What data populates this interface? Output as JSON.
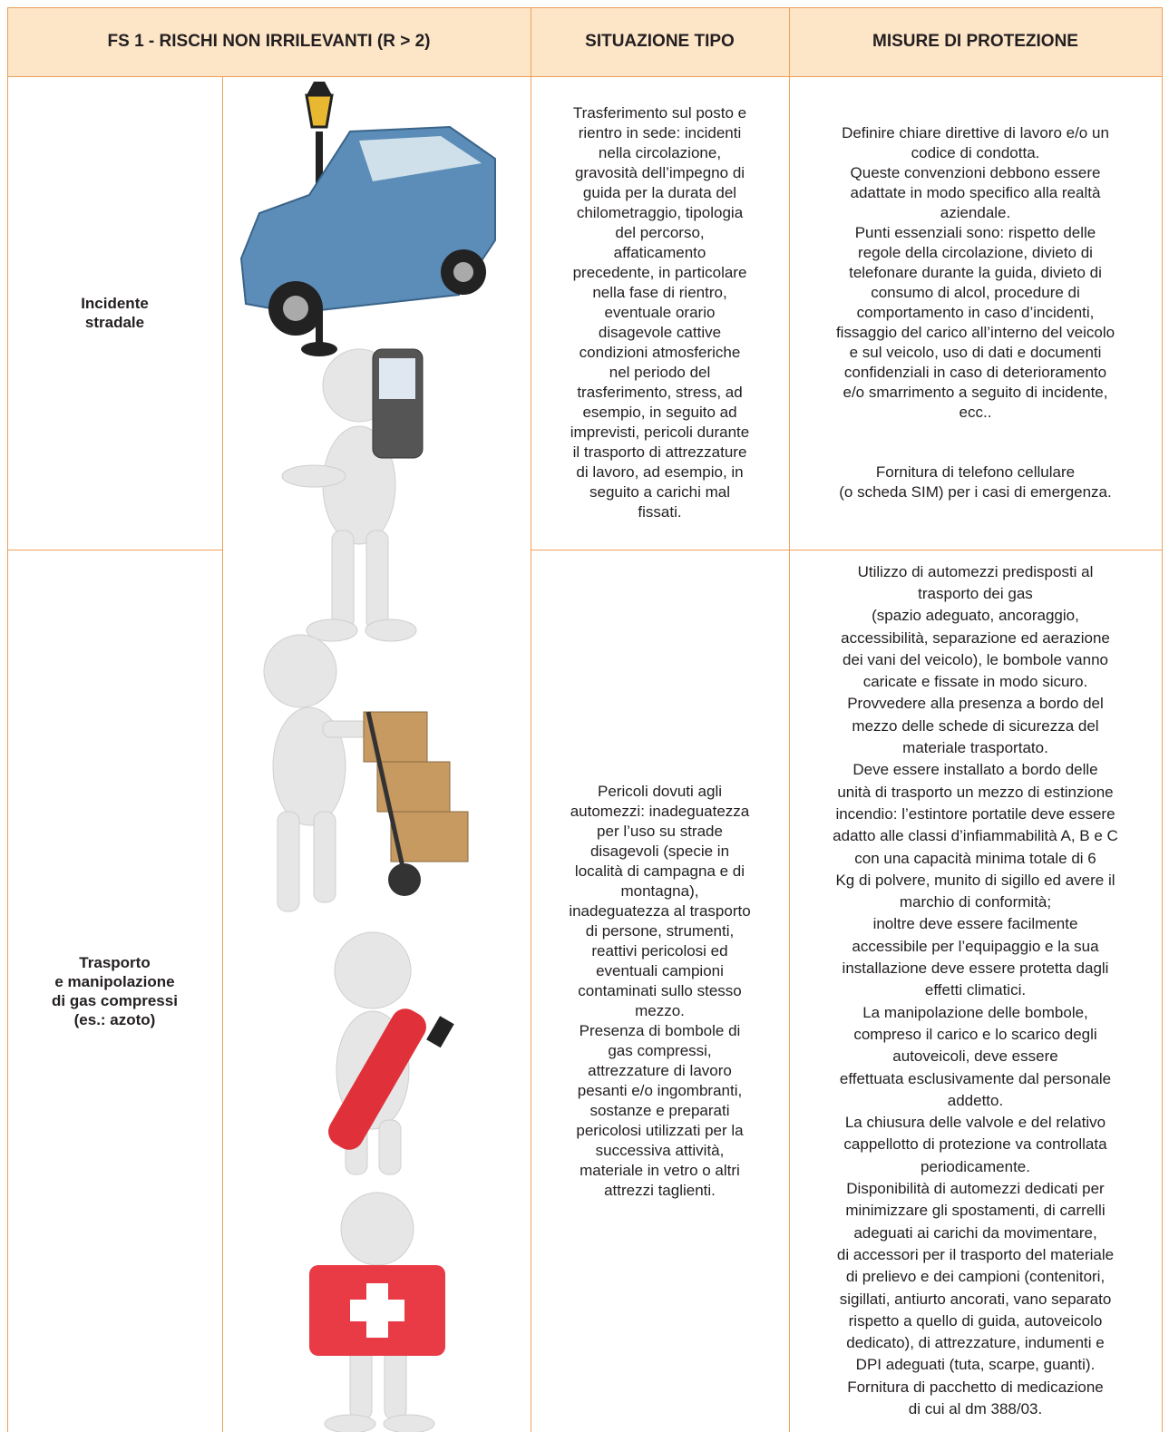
{
  "header": {
    "cells": [
      "FS 1 - RISCHI NON IRRILEVANTI (R > 2)",
      "SITUAZIONE TIPO",
      "MISURE DI PROTEZIONE"
    ]
  },
  "rows": [
    {
      "label": [
        "Incidente",
        "stradale"
      ],
      "situazione": [
        [
          "Trasferimento sul posto e",
          "rientro in sede: incidenti",
          "nella circolazione,",
          "gravosità dell’impegno di",
          "guida per la durata del",
          "chilometraggio, tipologia",
          "del percorso,",
          "affaticamento",
          "precedente, in particolare",
          "nella fase di rientro,",
          "eventuale orario",
          "disagevole cattive",
          "condizioni atmosferiche",
          "nel periodo del",
          "trasferimento, stress, ad",
          "esempio, in seguito ad",
          "imprevisti, pericoli durante",
          "il trasporto di attrezzature",
          "di lavoro, ad esempio, in",
          "seguito a carichi mal",
          "fissati."
        ]
      ],
      "misure": [
        [
          "Definire chiare direttive di lavoro e/o un",
          "codice di condotta.",
          "Queste convenzioni debbono essere",
          "adattate in modo specifico alla realtà",
          "aziendale.",
          "Punti essenziali sono: rispetto delle",
          "regole della circolazione, divieto di",
          "telefonare durante la guida, divieto di",
          "consumo di alcol, procedure di",
          "comportamento in caso d’incidenti,",
          "fissaggio del carico all’interno del veicolo",
          "e sul veicolo, uso di dati e documenti",
          "confidenziali in caso di deterioramento",
          "e/o smarrimento a seguito di incidente,",
          "ecc.."
        ],
        [
          "Fornitura di telefono cellulare",
          "(o scheda SIM) per i casi di emergenza."
        ]
      ]
    },
    {
      "label": [
        "Trasporto",
        "e manipolazione",
        "di gas compressi",
        "(es.: azoto)"
      ],
      "situazione": [
        [
          "Pericoli dovuti agli",
          "automezzi: inadeguatezza",
          "per l’uso su strade",
          "disagevoli (specie in",
          "località di campagna e di",
          "montagna),",
          "inadeguatezza al trasporto",
          "di persone, strumenti,",
          "reattivi pericolosi ed",
          "eventuali campioni",
          "contaminati sullo stesso",
          "mezzo.",
          "Presenza di bombole di",
          "gas compressi,",
          "attrezzature di lavoro",
          "pesanti e/o ingombranti,",
          "sostanze e preparati",
          "pericolosi utilizzati per la",
          "successiva attività,",
          "materiale in vetro o altri",
          "attrezzi taglienti."
        ]
      ],
      "misure": [
        [
          "Utilizzo di automezzi predisposti al",
          "trasporto dei gas",
          "(spazio adeguato, ancoraggio,",
          "accessibilità, separazione ed aerazione",
          "dei vani del veicolo), le bombole vanno",
          "caricate e fissate in modo sicuro.",
          "Provvedere alla presenza a bordo del",
          "mezzo delle schede di sicurezza del",
          "materiale trasportato.",
          "Deve essere installato a bordo delle",
          "unità di trasporto un mezzo di estinzione",
          "incendio: l’estintore portatile deve essere",
          "adatto alle classi d’infiammabilità A, B e C",
          "con una capacità minima totale di 6",
          "Kg di polvere, munito di sigillo ed avere il",
          "marchio di conformità;",
          "inoltre deve essere facilmente",
          "accessibile per l’equipaggio e la sua",
          "installazione deve essere protetta dagli",
          "effetti climatici.",
          "La manipolazione delle bombole,",
          "compreso il carico e lo scarico degli",
          "autoveicoli, deve essere",
          "effettuata esclusivamente dal personale",
          "addetto.",
          "La chiusura delle valvole e del relativo",
          "cappellotto di protezione va controllata",
          "periodicamente.",
          "Disponibilità di automezzi dedicati per",
          "minimizzare gli spostamenti, di carrelli",
          "adeguati ai carichi da movimentare,",
          "di accessori per il trasporto del materiale",
          "di prelievo e dei campioni (contenitori,",
          "sigillati, antiurto ancorati, vano separato",
          "rispetto a quello di guida, autoveicolo",
          "dedicato), di attrezzature, indumenti e",
          "DPI adeguati (tuta, scarpe, guanti).",
          "Fornitura di pacchetto di medicazione",
          "di cui al dm 388/03."
        ]
      ]
    }
  ]
}
